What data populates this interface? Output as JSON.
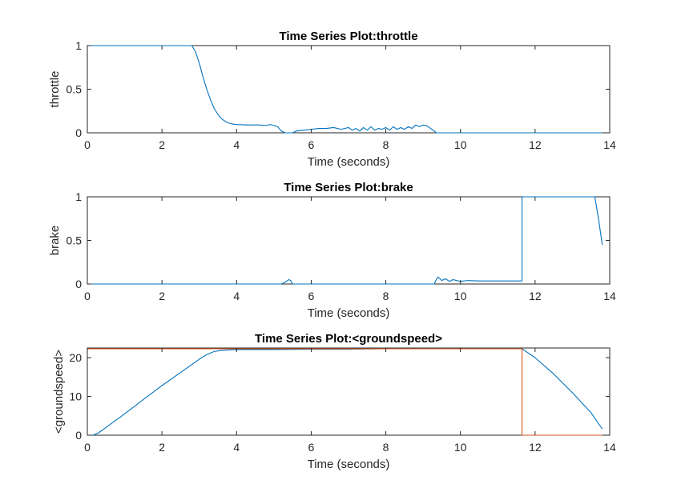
{
  "figure": {
    "background": "#ffffff"
  },
  "chart_data": [
    {
      "type": "line",
      "title": "Time Series Plot:throttle",
      "xlabel": "Time (seconds)",
      "ylabel": "throttle",
      "xlim": [
        0,
        14
      ],
      "ylim": [
        0,
        1
      ],
      "xticks": [
        "0",
        "2",
        "4",
        "6",
        "8",
        "10",
        "12",
        "14"
      ],
      "yticks": [
        "0",
        "0.5",
        "1"
      ],
      "grid": false,
      "series": [
        {
          "color": "#0072BD",
          "x": [
            0,
            2.8,
            2.9,
            3.0,
            3.1,
            3.2,
            3.3,
            3.4,
            3.5,
            3.6,
            3.7,
            3.8,
            3.9,
            4.0,
            4.3,
            4.6,
            4.8,
            4.9,
            5.0,
            5.1,
            5.2,
            5.3,
            5.5,
            5.6,
            5.8,
            6.0,
            6.2,
            6.4,
            6.6,
            6.8,
            7.0,
            7.1,
            7.2,
            7.3,
            7.4,
            7.5,
            7.6,
            7.7,
            7.8,
            7.9,
            8.0,
            8.1,
            8.2,
            8.3,
            8.4,
            8.5,
            8.6,
            8.7,
            8.8,
            8.9,
            9.0,
            9.1,
            9.2,
            9.3,
            9.35,
            10,
            12,
            13.8
          ],
          "y": [
            1.0,
            1.0,
            0.93,
            0.8,
            0.64,
            0.5,
            0.38,
            0.28,
            0.21,
            0.16,
            0.13,
            0.11,
            0.1,
            0.095,
            0.09,
            0.09,
            0.085,
            0.095,
            0.085,
            0.07,
            0.02,
            0.0,
            0.0,
            0.02,
            0.03,
            0.04,
            0.05,
            0.05,
            0.06,
            0.04,
            0.06,
            0.03,
            0.05,
            0.02,
            0.06,
            0.03,
            0.07,
            0.03,
            0.05,
            0.04,
            0.06,
            0.03,
            0.07,
            0.04,
            0.06,
            0.04,
            0.07,
            0.05,
            0.09,
            0.07,
            0.09,
            0.08,
            0.05,
            0.02,
            0.0,
            0.0,
            0.0,
            0.0
          ]
        }
      ]
    },
    {
      "type": "line",
      "title": "Time Series Plot:brake",
      "xlabel": "Time (seconds)",
      "ylabel": "brake",
      "xlim": [
        0,
        14
      ],
      "ylim": [
        0,
        1
      ],
      "xticks": [
        "0",
        "2",
        "4",
        "6",
        "8",
        "10",
        "12",
        "14"
      ],
      "yticks": [
        "0",
        "0.5",
        "1"
      ],
      "grid": false,
      "series": [
        {
          "color": "#0072BD",
          "x": [
            0,
            5.2,
            5.3,
            5.4,
            5.45,
            5.5,
            5.6,
            9.3,
            9.35,
            9.4,
            9.5,
            9.6,
            9.7,
            9.8,
            10.0,
            10.2,
            10.5,
            11.0,
            11.5,
            11.65,
            11.65,
            12.0,
            13.0,
            13.6,
            13.7,
            13.8
          ],
          "y": [
            0.0,
            0.0,
            0.02,
            0.05,
            0.04,
            0.0,
            0.0,
            0.0,
            0.05,
            0.08,
            0.04,
            0.06,
            0.03,
            0.05,
            0.03,
            0.04,
            0.035,
            0.035,
            0.035,
            0.035,
            1.0,
            1.0,
            1.0,
            1.0,
            0.75,
            0.45
          ]
        }
      ]
    },
    {
      "type": "line",
      "title": "Time Series Plot:<groundspeed>",
      "xlabel": "Time (seconds)",
      "ylabel": "<groundspeed>",
      "xlim": [
        0,
        14
      ],
      "ylim": [
        0,
        22.5
      ],
      "xticks": [
        "0",
        "2",
        "4",
        "6",
        "8",
        "10",
        "12",
        "14"
      ],
      "yticks": [
        "0",
        "10",
        "20"
      ],
      "yticks_values": [
        0,
        10,
        20
      ],
      "grid": false,
      "series": [
        {
          "color": "#0072BD",
          "x": [
            0.15,
            0.3,
            0.5,
            1.0,
            1.5,
            2.0,
            2.5,
            3.0,
            3.2,
            3.4,
            3.6,
            3.8,
            4.0,
            5.0,
            6.0,
            7.0,
            8.0,
            9.0,
            10.0,
            11.0,
            11.65,
            12.0,
            12.5,
            13.0,
            13.5,
            13.8
          ],
          "y": [
            0.0,
            0.6,
            2.0,
            5.5,
            9.2,
            12.8,
            16.2,
            19.6,
            20.8,
            21.6,
            21.9,
            22.0,
            22.1,
            22.1,
            22.2,
            22.2,
            22.3,
            22.3,
            22.3,
            22.3,
            22.3,
            20.0,
            15.8,
            11.0,
            5.8,
            1.6
          ]
        },
        {
          "color": "#D95319",
          "x": [
            0,
            11.65,
            11.65,
            13.8
          ],
          "y": [
            22.3,
            22.3,
            0.0,
            0.0
          ]
        }
      ]
    }
  ]
}
